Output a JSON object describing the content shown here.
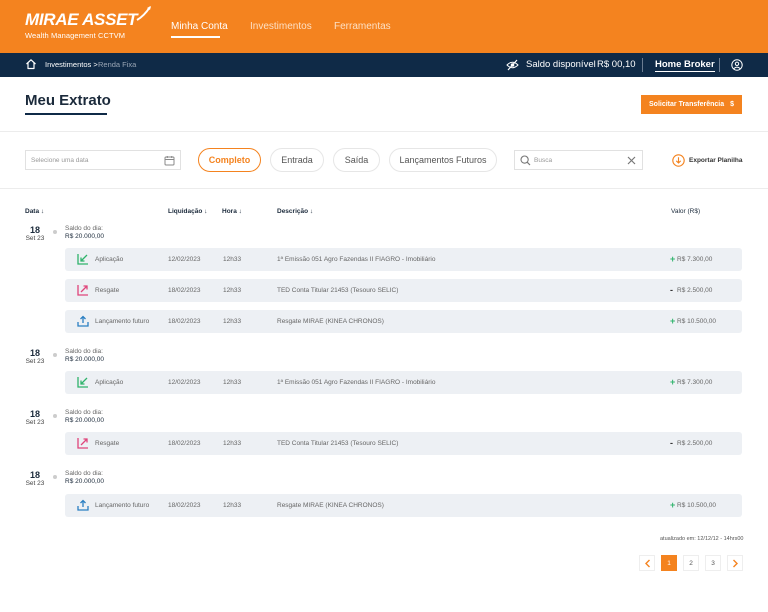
{
  "brand": {
    "name": "MIRAE ASSET",
    "subtitle": "Wealth Management CCTVM"
  },
  "nav": [
    {
      "label": "Minha Conta",
      "active": true
    },
    {
      "label": "Investimentos",
      "active": false
    },
    {
      "label": "Ferramentas",
      "active": false
    }
  ],
  "subbar": {
    "breadcrumb": [
      "Investimentos >",
      "Renda Fixa"
    ],
    "saldo_label": "Saldo disponível",
    "saldo_value": "R$ 00,10",
    "home_broker": "Home Broker"
  },
  "page": {
    "title": "Meu Extrato",
    "transfer_button": "Solicitar Transferência",
    "transfer_symbol": "$"
  },
  "filters": {
    "date_placeholder": "Selecione uma data",
    "chips": [
      "Completo",
      "Entrada",
      "Saída",
      "Lançamentos Futuros"
    ],
    "active_chip": "Completo",
    "search_placeholder": "Busca",
    "export_label": "Exportar Planilha"
  },
  "table": {
    "headers": {
      "date": "Data ↓",
      "liquidacao": "Liquidação ↓",
      "hora": "Hora ↓",
      "descricao": "Descrição ↓",
      "valor": "Valor (R$)"
    },
    "groups": [
      {
        "day": "18",
        "month": "Set 23",
        "saldo_label": "Saldo do dia:",
        "saldo_value": "R$ 20.000,00",
        "rows": [
          {
            "type": "Aplicação",
            "icon": "aplicacao-icon",
            "liquidacao": "12/02/2023",
            "hora": "12h33",
            "descricao": "1ª Emissão 051 Agro Fazendas II FIAGRO - Imobiliário",
            "sign": "+",
            "valor": "R$ 7.300,00"
          },
          {
            "type": "Resgate",
            "icon": "resgate-icon",
            "liquidacao": "18/02/2023",
            "hora": "12h33",
            "descricao": "TED Conta Titular 21453 (Tesouro SELIC)",
            "sign": "-",
            "valor": "R$ 2.500,00"
          },
          {
            "type": "Lançamento futuro",
            "icon": "lancamento-futuro-icon",
            "liquidacao": "18/02/2023",
            "hora": "12h33",
            "descricao": "Resgate MIRAE (KINEA CHRONOS)",
            "sign": "+",
            "valor": "R$ 10.500,00"
          }
        ]
      },
      {
        "day": "18",
        "month": "Set 23",
        "saldo_label": "Saldo do dia:",
        "saldo_value": "R$ 20.000,00",
        "rows": [
          {
            "type": "Aplicação",
            "icon": "aplicacao-icon",
            "liquidacao": "12/02/2023",
            "hora": "12h33",
            "descricao": "1ª Emissão 051 Agro Fazendas II FIAGRO - Imobiliário",
            "sign": "+",
            "valor": "R$ 7.300,00"
          }
        ]
      },
      {
        "day": "18",
        "month": "Set 23",
        "saldo_label": "Saldo do dia:",
        "saldo_value": "R$ 20.000,00",
        "rows": [
          {
            "type": "Resgate",
            "icon": "resgate-icon",
            "liquidacao": "18/02/2023",
            "hora": "12h33",
            "descricao": "TED Conta Titular 21453 (Tesouro SELIC)",
            "sign": "-",
            "valor": "R$ 2.500,00"
          }
        ]
      },
      {
        "day": "18",
        "month": "Set 23",
        "saldo_label": "Saldo do dia:",
        "saldo_value": "R$ 20.000,00",
        "rows": [
          {
            "type": "Lançamento futuro",
            "icon": "lancamento-futuro-icon",
            "liquidacao": "18/02/2023",
            "hora": "12h33",
            "descricao": "Resgate MIRAE (KINEA CHRONOS)",
            "sign": "+",
            "valor": "R$ 10.500,00"
          }
        ]
      }
    ]
  },
  "updated": "atualizado em: 12/12/12 - 14hrs00",
  "pagination": {
    "pages": [
      "1",
      "2",
      "3"
    ],
    "current": "1"
  },
  "colors": {
    "primary": "#f4831f",
    "navy": "#0f2a47",
    "positive": "#2fb36b",
    "negative": "#e0457b",
    "future": "#2b7fc2",
    "row_bg": "#edf0f4"
  }
}
